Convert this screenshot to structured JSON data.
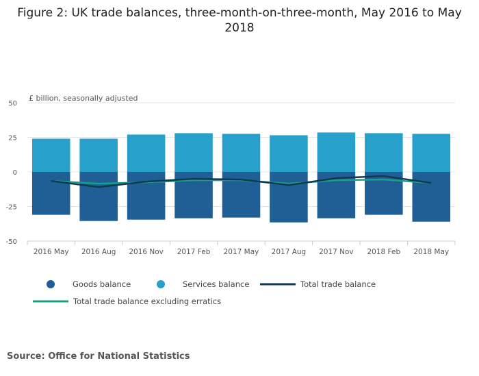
{
  "title": "Figure 2: UK trade balances, three-month-on-three-month, May 2016 to May 2018",
  "source": "Source: Office for National Statistics",
  "chart_data": {
    "type": "bar",
    "stacked": true,
    "ylabel": "£ billion, seasonally adjusted",
    "ylim": [
      -50,
      50
    ],
    "yticks": [
      50,
      25,
      0,
      -25,
      -50
    ],
    "categories": [
      "2016 May",
      "2016 Aug",
      "2016 Nov",
      "2017 Feb",
      "2017 May",
      "2017 Aug",
      "2017 Nov",
      "2018 Feb",
      "2018 May"
    ],
    "series": [
      {
        "name": "Goods balance",
        "kind": "bar",
        "color": "#1f5f96",
        "values": [
          -31,
          -35.5,
          -34.5,
          -33.5,
          -33,
          -36.5,
          -33.5,
          -31,
          -36
        ]
      },
      {
        "name": "Services balance",
        "kind": "bar",
        "color": "#27a0cc",
        "values": [
          24,
          24,
          27,
          28,
          27.5,
          26.5,
          28.5,
          28,
          27.5
        ]
      },
      {
        "name": "Total trade balance",
        "kind": "line",
        "color": "#0f3a52",
        "values": [
          -6.5,
          -11,
          -7,
          -5,
          -5.5,
          -9.5,
          -4.5,
          -3,
          -8
        ]
      },
      {
        "name": "Total trade balance excluding erratics",
        "kind": "line",
        "color": "#1a9e85",
        "values": [
          -6.5,
          -8.5,
          -7.5,
          -6,
          -6,
          -8.5,
          -6,
          -5.5,
          -8
        ]
      }
    ],
    "legend": "bottom"
  }
}
